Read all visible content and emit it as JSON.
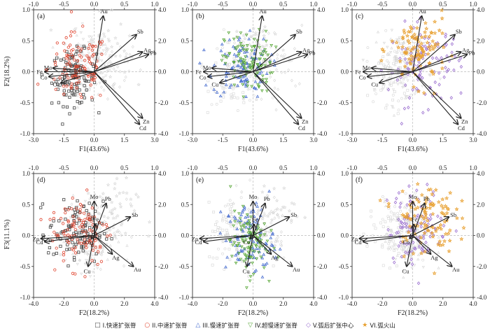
{
  "figure": {
    "y_axis_label_top": "F2(18.2%)",
    "y_axis_label_bottom": "F3(11.1%)"
  },
  "legend": [
    {
      "marker": "□",
      "label": "I.快速扩张脊",
      "color": "#444444"
    },
    {
      "marker": "○",
      "label": "II.中速扩张脊",
      "color": "#e0402a"
    },
    {
      "marker": "△",
      "label": "III.慢速扩张脊",
      "color": "#4a6fd0"
    },
    {
      "marker": "▽",
      "label": "IV.超慢速扩张脊",
      "color": "#5aa83a"
    },
    {
      "marker": "◇",
      "label": "V.弧后扩张中心",
      "color": "#9b6fd0"
    },
    {
      "marker": "★",
      "label": "VI.弧火山",
      "color": "#e8a030"
    }
  ],
  "chart_data": [
    {
      "panel": "(a)",
      "type": "scatter",
      "xlabel": "F1(43.6%)",
      "ylabel": "F2(18.2%)",
      "xlim": [
        -3.0,
        3.0
      ],
      "ylim": [
        -1.0,
        1.0
      ],
      "x_ticks": [
        "-3.0",
        "-1.5",
        "0.0",
        "1.5",
        "3.0"
      ],
      "y_ticks": [
        "-1.0",
        "-0.5",
        "0.0",
        "0.5",
        "1.0"
      ],
      "top_ticks": [
        "-1.0",
        "-0.5",
        "0.0",
        "0.5",
        "1.0"
      ],
      "right_ticks": [
        "-4.0",
        "-2.0",
        "0.0",
        "2.0",
        "4.0"
      ],
      "loadings": [
        {
          "name": "Au",
          "x": 0.15,
          "y": 0.9
        },
        {
          "name": "Sb",
          "x": 0.7,
          "y": 0.6
        },
        {
          "name": "Ag",
          "x": 0.8,
          "y": 0.32
        },
        {
          "name": "Pb",
          "x": 0.9,
          "y": 0.28
        },
        {
          "name": "Zn",
          "x": 0.8,
          "y": -0.75
        },
        {
          "name": "Cd",
          "x": 0.75,
          "y": -0.85
        },
        {
          "name": "Mo",
          "x": -0.68,
          "y": 0.06
        },
        {
          "name": "Fe",
          "x": -0.82,
          "y": 0.0
        },
        {
          "name": "Co",
          "x": -0.75,
          "y": -0.08
        },
        {
          "name": "Cu",
          "x": -0.55,
          "y": -0.18
        }
      ],
      "highlight_groups": [
        "I",
        "II"
      ]
    },
    {
      "panel": "(b)",
      "type": "scatter",
      "xlabel": "F1(43.6%)",
      "ylabel": "",
      "xlim": [
        -3.0,
        3.0
      ],
      "ylim": [
        -1.0,
        1.0
      ],
      "x_ticks": [
        "-3.0",
        "-1.5",
        "0.0",
        "1.5",
        "3.0"
      ],
      "y_ticks": [
        "-1.0",
        "-0.5",
        "0.0",
        "0.5",
        "1.0"
      ],
      "top_ticks": [
        "-1.0",
        "-0.5",
        "0.0",
        "0.5",
        "1.0"
      ],
      "right_ticks": [
        "-4.0",
        "-2.0",
        "0.0",
        "2.0",
        "4.0"
      ],
      "loadings": [
        {
          "name": "Au",
          "x": 0.15,
          "y": 0.9
        },
        {
          "name": "Sb",
          "x": 0.7,
          "y": 0.6
        },
        {
          "name": "Ag",
          "x": 0.8,
          "y": 0.32
        },
        {
          "name": "Pb",
          "x": 0.9,
          "y": 0.28
        },
        {
          "name": "Zn",
          "x": 0.8,
          "y": -0.75
        },
        {
          "name": "Cd",
          "x": 0.75,
          "y": -0.85
        },
        {
          "name": "Mo",
          "x": -0.68,
          "y": 0.06
        },
        {
          "name": "Fe",
          "x": -0.82,
          "y": 0.0
        },
        {
          "name": "Co",
          "x": -0.75,
          "y": -0.08
        },
        {
          "name": "Cu",
          "x": -0.55,
          "y": -0.18
        }
      ],
      "highlight_groups": [
        "III",
        "IV"
      ]
    },
    {
      "panel": "(c)",
      "type": "scatter",
      "xlabel": "F1(43.6%)",
      "ylabel": "",
      "xlim": [
        -3.0,
        3.0
      ],
      "ylim": [
        -1.0,
        1.0
      ],
      "x_ticks": [
        "-3.0",
        "-1.5",
        "0.0",
        "1.5",
        "3.0"
      ],
      "y_ticks": [
        "-1.0",
        "-0.5",
        "0.0",
        "0.5",
        "1.0"
      ],
      "top_ticks": [
        "-1.0",
        "-0.5",
        "0.0",
        "0.5",
        "1.0"
      ],
      "right_ticks": [
        "-4.0",
        "-2.0",
        "0.0",
        "2.0",
        "4.0"
      ],
      "loadings": [
        {
          "name": "Au",
          "x": 0.15,
          "y": 0.9
        },
        {
          "name": "Sb",
          "x": 0.7,
          "y": 0.6
        },
        {
          "name": "Ag",
          "x": 0.8,
          "y": 0.32
        },
        {
          "name": "Pb",
          "x": 0.9,
          "y": 0.28
        },
        {
          "name": "Zn",
          "x": 0.8,
          "y": -0.75
        },
        {
          "name": "Cd",
          "x": 0.75,
          "y": -0.85
        },
        {
          "name": "Mo",
          "x": -0.68,
          "y": 0.06
        },
        {
          "name": "Fe",
          "x": -0.82,
          "y": 0.0
        },
        {
          "name": "Co",
          "x": -0.75,
          "y": -0.08
        },
        {
          "name": "Cu",
          "x": -0.55,
          "y": -0.18
        }
      ],
      "highlight_groups": [
        "V",
        "VI"
      ]
    },
    {
      "panel": "(d)",
      "type": "scatter",
      "xlabel": "F2(18.2%)",
      "ylabel": "F3(11.1%)",
      "xlim": [
        -4.0,
        4.0
      ],
      "ylim": [
        -1.0,
        1.0
      ],
      "x_ticks": [
        "-4.0",
        "-2.0",
        "0.0",
        "2.0",
        "4.0"
      ],
      "y_ticks": [
        "-1.0",
        "-0.5",
        "0.0",
        "0.5",
        "1.0"
      ],
      "top_ticks": [
        "-1.0",
        "-0.5",
        "0.0",
        "0.5",
        "1.0"
      ],
      "right_ticks": [
        "-4.0",
        "-2.0",
        "0.0",
        "2.0",
        "4.0"
      ],
      "loadings": [
        {
          "name": "Mo",
          "x": 0.0,
          "y": 0.55
        },
        {
          "name": "Pb",
          "x": 0.2,
          "y": 0.52
        },
        {
          "name": "Sb",
          "x": 0.6,
          "y": 0.3
        },
        {
          "name": "Fe",
          "x": 0.02,
          "y": 0.18
        },
        {
          "name": "Zn",
          "x": -0.88,
          "y": -0.05
        },
        {
          "name": "Cd",
          "x": -0.82,
          "y": -0.1
        },
        {
          "name": "Co",
          "x": -0.05,
          "y": -0.05
        },
        {
          "name": "Ag",
          "x": 0.3,
          "y": -0.3
        },
        {
          "name": "Cu",
          "x": -0.1,
          "y": -0.5
        },
        {
          "name": "Au",
          "x": 0.65,
          "y": -0.5
        }
      ],
      "highlight_groups": [
        "I",
        "II"
      ]
    },
    {
      "panel": "(e)",
      "type": "scatter",
      "xlabel": "F2(18.2%)",
      "ylabel": "",
      "xlim": [
        -4.0,
        4.0
      ],
      "ylim": [
        -1.0,
        1.0
      ],
      "x_ticks": [
        "-4.0",
        "-2.0",
        "0.0",
        "2.0",
        "4.0"
      ],
      "y_ticks": [
        "-1.0",
        "-0.5",
        "0.0",
        "0.5",
        "1.0"
      ],
      "top_ticks": [
        "-1.0",
        "-0.5",
        "0.0",
        "0.5",
        "1.0"
      ],
      "right_ticks": [
        "-4.0",
        "-2.0",
        "0.0",
        "2.0",
        "4.0"
      ],
      "loadings": [
        {
          "name": "Mo",
          "x": 0.0,
          "y": 0.55
        },
        {
          "name": "Pb",
          "x": 0.2,
          "y": 0.52
        },
        {
          "name": "Sb",
          "x": 0.6,
          "y": 0.3
        },
        {
          "name": "Fe",
          "x": 0.02,
          "y": 0.18
        },
        {
          "name": "Zn",
          "x": -0.88,
          "y": -0.05
        },
        {
          "name": "Cd",
          "x": -0.82,
          "y": -0.1
        },
        {
          "name": "Co",
          "x": -0.05,
          "y": -0.05
        },
        {
          "name": "Ag",
          "x": 0.3,
          "y": -0.3
        },
        {
          "name": "Cu",
          "x": -0.1,
          "y": -0.5
        },
        {
          "name": "Au",
          "x": 0.65,
          "y": -0.5
        }
      ],
      "highlight_groups": [
        "III",
        "IV"
      ]
    },
    {
      "panel": "(f)",
      "type": "scatter",
      "xlabel": "F2(18.2%)",
      "ylabel": "",
      "xlim": [
        -4.0,
        4.0
      ],
      "ylim": [
        -1.0,
        1.0
      ],
      "x_ticks": [
        "-4.0",
        "-2.0",
        "0.0",
        "2.0",
        "4.0"
      ],
      "y_ticks": [
        "-1.0",
        "-0.5",
        "0.0",
        "0.5",
        "1.0"
      ],
      "top_ticks": [
        "-1.0",
        "-0.5",
        "0.0",
        "0.5",
        "1.0"
      ],
      "right_ticks": [
        "-4.0",
        "-2.0",
        "0.0",
        "2.0",
        "4.0"
      ],
      "loadings": [
        {
          "name": "Mo",
          "x": 0.0,
          "y": 0.55
        },
        {
          "name": "Pb",
          "x": 0.2,
          "y": 0.52
        },
        {
          "name": "Sb",
          "x": 0.6,
          "y": 0.3
        },
        {
          "name": "Fe",
          "x": 0.02,
          "y": 0.18
        },
        {
          "name": "Zn",
          "x": -0.88,
          "y": -0.05
        },
        {
          "name": "Cd",
          "x": -0.82,
          "y": -0.1
        },
        {
          "name": "Co",
          "x": -0.05,
          "y": -0.05
        },
        {
          "name": "Ag",
          "x": 0.3,
          "y": -0.3
        },
        {
          "name": "Cu",
          "x": -0.1,
          "y": -0.5
        },
        {
          "name": "Au",
          "x": 0.65,
          "y": -0.5
        }
      ],
      "highlight_groups": [
        "V",
        "VI"
      ]
    }
  ]
}
